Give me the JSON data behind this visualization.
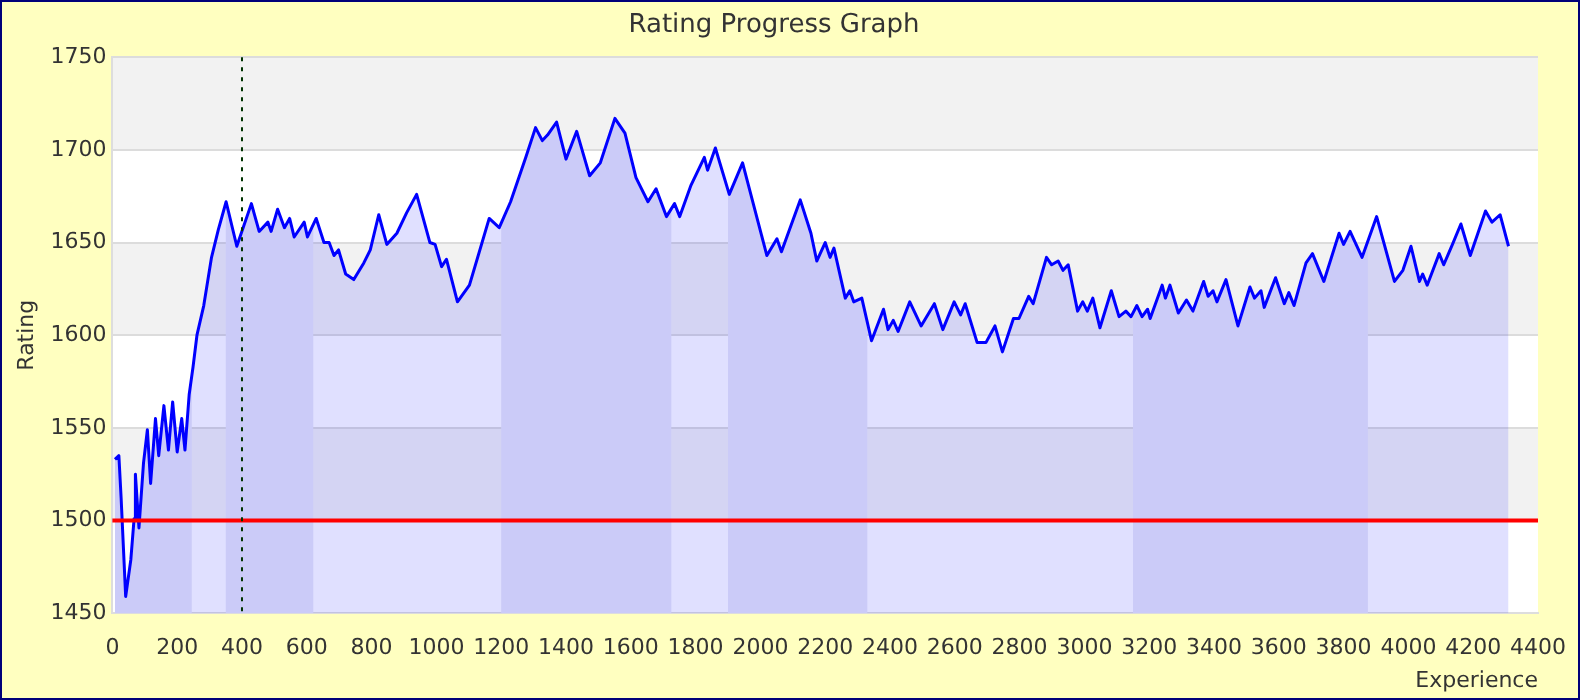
{
  "chart_data": {
    "type": "area",
    "title": "Rating Progress Graph",
    "xlabel": "Experience",
    "ylabel": "Rating",
    "xlim": [
      0,
      4400
    ],
    "xticks": [
      0,
      200,
      400,
      600,
      800,
      1000,
      1200,
      1400,
      1600,
      1800,
      2000,
      2200,
      2400,
      2600,
      2800,
      3000,
      3200,
      3400,
      3600,
      3800,
      4000,
      4200,
      4400
    ],
    "ylim": [
      1450,
      1750
    ],
    "yticks": [
      1450,
      1500,
      1550,
      1600,
      1650,
      1700,
      1750
    ],
    "grid": "y",
    "legend": false,
    "marker": "none",
    "series": [
      {
        "color": "#0000ff",
        "x": [
          8,
          20,
          27,
          41,
          57,
          67,
          71,
          82,
          96,
          108,
          118,
          133,
          143,
          159,
          173,
          186,
          200,
          214,
          224,
          237,
          249,
          261,
          282,
          306,
          327,
          351,
          384,
          429,
          453,
          480,
          490,
          510,
          531,
          547,
          561,
          592,
          602,
          629,
          653,
          669,
          684,
          698,
          720,
          745,
          776,
          796,
          822,
          847,
          878,
          908,
          939,
          980,
          996,
          1016,
          1031,
          1065,
          1102,
          1163,
          1194,
          1229,
          1276,
          1306,
          1327,
          1343,
          1371,
          1400,
          1433,
          1473,
          1506,
          1551,
          1582,
          1616,
          1653,
          1678,
          1710,
          1735,
          1751,
          1786,
          1827,
          1837,
          1861,
          1904,
          1945,
          2020,
          2051,
          2065,
          2123,
          2156,
          2174,
          2200,
          2215,
          2227,
          2262,
          2276,
          2288,
          2313,
          2343,
          2380,
          2394,
          2410,
          2425,
          2461,
          2496,
          2537,
          2563,
          2598,
          2618,
          2632,
          2669,
          2696,
          2724,
          2747,
          2781,
          2798,
          2828,
          2842,
          2883,
          2899,
          2919,
          2934,
          2950,
          2979,
          2995,
          3009,
          3026,
          3048,
          3083,
          3107,
          3128,
          3144,
          3162,
          3178,
          3195,
          3203,
          3240,
          3250,
          3264,
          3290,
          3315,
          3335,
          3368,
          3382,
          3397,
          3409,
          3437,
          3474,
          3511,
          3525,
          3545,
          3555,
          3590,
          3617,
          3631,
          3647,
          3684,
          3704,
          3739,
          3786,
          3800,
          3820,
          3857,
          3902,
          3957,
          3983,
          4008,
          4034,
          4044,
          4058,
          4095,
          4109,
          4136,
          4162,
          4191,
          4238,
          4258,
          4283,
          4309
        ],
        "values": [
          1533,
          1535,
          1512,
          1459,
          1479,
          1501,
          1525,
          1496,
          1531,
          1549,
          1520,
          1555,
          1535,
          1562,
          1538,
          1564,
          1537,
          1555,
          1538,
          1568,
          1583,
          1600,
          1616,
          1642,
          1657,
          1672,
          1648,
          1671,
          1656,
          1661,
          1656,
          1668,
          1658,
          1663,
          1653,
          1661,
          1653,
          1663,
          1650,
          1650,
          1643,
          1646,
          1633,
          1630,
          1639,
          1646,
          1665,
          1649,
          1655,
          1666,
          1676,
          1650,
          1649,
          1637,
          1641,
          1618,
          1627,
          1663,
          1658,
          1672,
          1696,
          1712,
          1705,
          1708,
          1715,
          1695,
          1710,
          1686,
          1693,
          1717,
          1709,
          1685,
          1672,
          1679,
          1664,
          1671,
          1664,
          1681,
          1696,
          1689,
          1701,
          1676,
          1693,
          1643,
          1652,
          1645,
          1673,
          1655,
          1640,
          1650,
          1642,
          1647,
          1620,
          1624,
          1618,
          1620,
          1597,
          1614,
          1603,
          1608,
          1602,
          1618,
          1605,
          1617,
          1603,
          1618,
          1611,
          1617,
          1596,
          1596,
          1605,
          1591,
          1609,
          1609,
          1621,
          1617,
          1642,
          1638,
          1640,
          1635,
          1638,
          1613,
          1618,
          1613,
          1620,
          1604,
          1624,
          1610,
          1613,
          1610,
          1616,
          1610,
          1614,
          1609,
          1627,
          1620,
          1627,
          1612,
          1619,
          1613,
          1629,
          1621,
          1624,
          1618,
          1630,
          1605,
          1626,
          1620,
          1624,
          1615,
          1631,
          1617,
          1623,
          1616,
          1639,
          1644,
          1629,
          1655,
          1649,
          1656,
          1642,
          1664,
          1629,
          1635,
          1648,
          1629,
          1633,
          1627,
          1644,
          1638,
          1649,
          1660,
          1643,
          1667,
          1661,
          1665,
          1648
        ]
      }
    ],
    "ref_lines": [
      {
        "axis": "y",
        "value": 1500,
        "color": "#ff0000",
        "line_style": "solid"
      },
      {
        "axis": "x",
        "value": 400,
        "color": "#003300",
        "line_style": "dotted"
      }
    ],
    "bands": [
      {
        "axis": "x",
        "from": 0,
        "to": 245,
        "color": "#e8e8f7"
      },
      {
        "axis": "x",
        "from": 350,
        "to": 620,
        "color": "#e8e8f7"
      },
      {
        "axis": "x",
        "from": 1200,
        "to": 1725,
        "color": "#e8e8f7"
      },
      {
        "axis": "x",
        "from": 1900,
        "to": 2330,
        "color": "#e8e8f7"
      },
      {
        "axis": "x",
        "from": 3150,
        "to": 3875,
        "color": "#e8e8f7"
      }
    ]
  }
}
